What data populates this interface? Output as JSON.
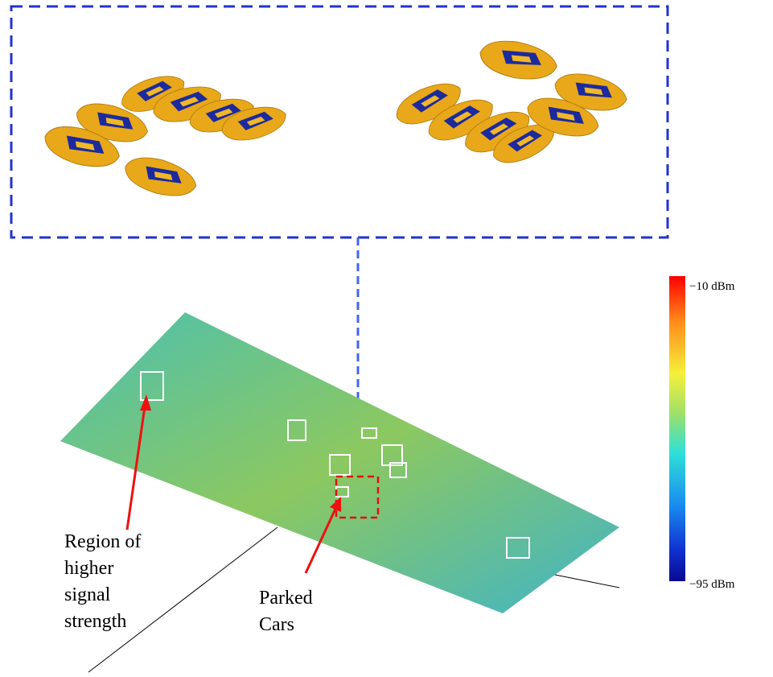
{
  "colorbar": {
    "max_label": "−10 dBm",
    "min_label": "−95 dBm"
  },
  "annotations": [
    {
      "lines": [
        "Region of",
        "higher",
        "signal",
        "strength"
      ]
    },
    {
      "lines": [
        "Parked",
        "Cars"
      ]
    }
  ]
}
